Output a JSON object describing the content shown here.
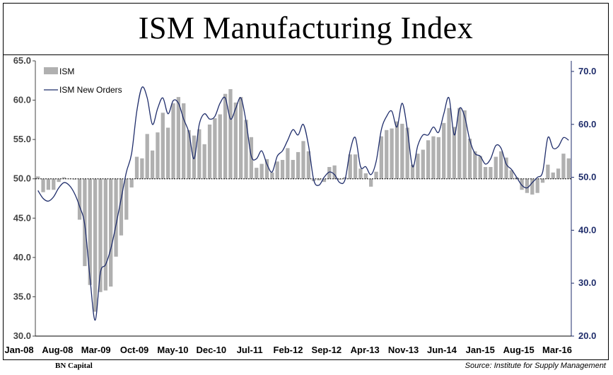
{
  "title": "ISM Manufacturing Index",
  "footer": {
    "left": "BN Capital",
    "right": "Source: Institute for Supply Management"
  },
  "colors": {
    "bar": "#b0b0b0",
    "line": "#1f2d6b",
    "right_axis": "#1f2d6b",
    "left_axis": "#444444"
  },
  "chart_data": {
    "type": "bar+line",
    "x_tick_labels": [
      "Jan-08",
      "Aug-08",
      "Mar-09",
      "Oct-09",
      "May-10",
      "Dec-10",
      "Jul-11",
      "Feb-12",
      "Sep-12",
      "Apr-13",
      "Nov-13",
      "Jun-14",
      "Jan-15",
      "Aug-15",
      "Mar-16"
    ],
    "left_axis": {
      "ylim": [
        30,
        65
      ],
      "ticks": [
        "30.0",
        "35.0",
        "40.0",
        "45.0",
        "50.0",
        "55.0",
        "60.0",
        "65.0"
      ]
    },
    "right_axis": {
      "ylim": [
        20,
        72
      ],
      "ticks": [
        "20.0",
        "30.0",
        "40.0",
        "50.0",
        "60.0",
        "70.0"
      ]
    },
    "baseline": 50,
    "series": [
      {
        "name": "ISM",
        "type": "bar",
        "axis": "left",
        "start": "Jan-08",
        "values": [
          50.3,
          48.3,
          48.6,
          48.6,
          49.6,
          50.2,
          50.0,
          49.9,
          44.8,
          38.9,
          36.5,
          33.1,
          35.6,
          35.8,
          36.3,
          40.1,
          42.8,
          44.8,
          48.9,
          52.8,
          52.6,
          55.7,
          53.6,
          55.9,
          58.4,
          56.5,
          59.6,
          60.4,
          59.6,
          56.2,
          55.5,
          56.3,
          54.4,
          56.9,
          57.7,
          58.2,
          60.8,
          61.4,
          59.7,
          60.4,
          57.5,
          55.3,
          51.4,
          51.9,
          52.5,
          50.8,
          52.2,
          52.4,
          53.9,
          52.4,
          53.4,
          54.8,
          53.5,
          49.7,
          49.8,
          49.6,
          51.5,
          51.7,
          49.9,
          50.2,
          53.1,
          53.1,
          51.3,
          50.7,
          49.0,
          50.9,
          55.4,
          56.2,
          56.4,
          57.3,
          57.0,
          56.5,
          51.8,
          53.2,
          53.7,
          54.9,
          55.4,
          55.3,
          57.1,
          59.0,
          56.6,
          59.0,
          58.7,
          55.1,
          53.5,
          52.9,
          51.5,
          51.5,
          52.8,
          53.5,
          52.7,
          51.1,
          50.2,
          48.6,
          48.2,
          48.0,
          48.2,
          49.5,
          51.8,
          50.8,
          51.3,
          53.2,
          52.6
        ],
        "legend": "ISM"
      },
      {
        "name": "ISM New Orders",
        "type": "line",
        "axis": "right",
        "start": "Jan-08",
        "values": [
          47.5,
          46.0,
          45.5,
          46.3,
          48.0,
          49.0,
          48.5,
          47.0,
          44.5,
          41.0,
          31.0,
          23.0,
          32.0,
          33.5,
          36.5,
          41.0,
          46.0,
          51.0,
          54.5,
          62.5,
          67.0,
          65.0,
          60.0,
          63.0,
          65.0,
          62.0,
          64.5,
          64.0,
          61.0,
          58.5,
          53.5,
          60.0,
          62.0,
          61.0,
          61.5,
          64.0,
          65.0,
          61.0,
          63.0,
          65.0,
          60.5,
          54.0,
          53.5,
          55.0,
          52.5,
          51.0,
          54.0,
          55.0,
          57.0,
          59.0,
          58.0,
          60.0,
          56.0,
          49.5,
          48.5,
          50.0,
          51.0,
          50.5,
          49.0,
          49.5,
          55.0,
          57.5,
          52.0,
          52.0,
          50.5,
          53.0,
          59.0,
          61.5,
          62.5,
          59.5,
          64.0,
          59.0,
          52.0,
          56.0,
          58.0,
          58.0,
          59.5,
          58.5,
          62.0,
          65.0,
          58.0,
          63.0,
          61.5,
          57.0,
          54.5,
          54.0,
          52.5,
          53.5,
          56.0,
          55.5,
          52.5,
          51.5,
          50.0,
          48.5,
          48.0,
          49.0,
          50.0,
          51.0,
          57.5,
          55.5,
          55.8,
          57.5,
          57.0
        ],
        "legend": "ISM New Orders"
      }
    ]
  }
}
